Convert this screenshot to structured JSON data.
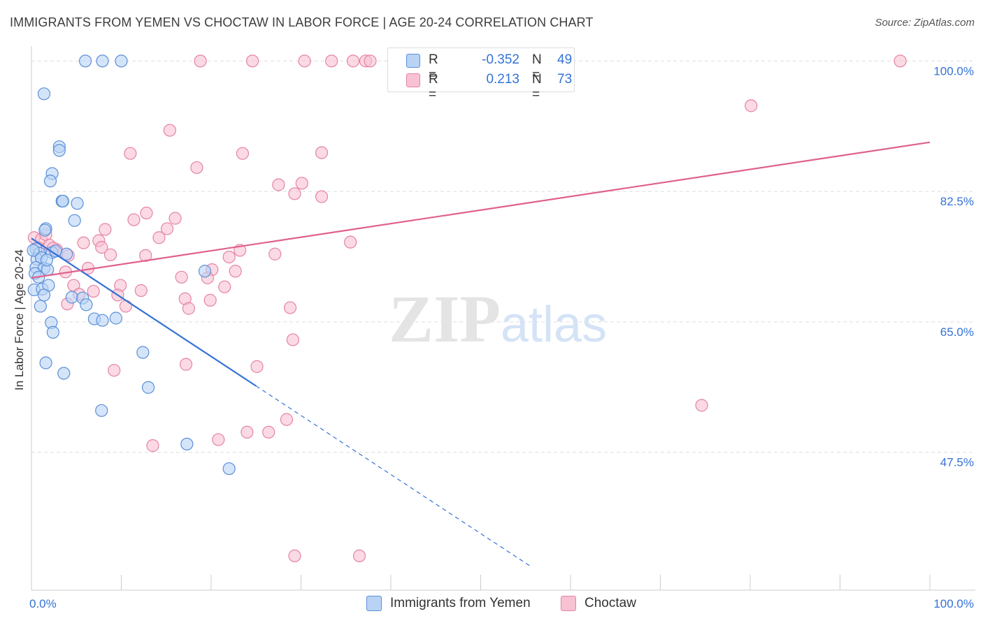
{
  "header": {
    "title": "IMMIGRANTS FROM YEMEN VS CHOCTAW IN LABOR FORCE | AGE 20-24 CORRELATION CHART",
    "source": "Source: ZipAtlas.com"
  },
  "watermark": {
    "zip": "ZIP",
    "atlas": "atlas"
  },
  "colors": {
    "blue_fill": "#b9d3f5",
    "blue_stroke": "#5b8fd9",
    "blue_line": "#3472d6",
    "pink_fill": "#f8c2d2",
    "pink_stroke": "#e583a5",
    "pink_line": "#e0608e",
    "axis_text": "#3472d6",
    "grid": "#dddddd"
  },
  "legend": {
    "rows": [
      {
        "r_label": "R =",
        "r_value": "-0.352",
        "n_label": "N =",
        "n_value": "49"
      },
      {
        "r_label": "R =",
        "r_value": "0.213",
        "n_label": "N =",
        "n_value": "73"
      }
    ]
  },
  "chart_data": {
    "type": "scatter",
    "title": "IMMIGRANTS FROM YEMEN VS CHOCTAW IN LABOR FORCE | AGE 20-24 CORRELATION CHART",
    "xlabel": "",
    "ylabel": "In Labor Force | Age 20-24",
    "xlim": [
      0,
      100
    ],
    "ylim": [
      29,
      102
    ],
    "x_tick_labels": [
      "0.0%",
      "100.0%"
    ],
    "y_ticks": [
      47.5,
      65.0,
      82.5,
      100.0
    ],
    "y_tick_labels": [
      "47.5%",
      "65.0%",
      "82.5%",
      "100.0%"
    ],
    "grid": true,
    "series": [
      {
        "name": "Immigrants from Yemen",
        "r": -0.352,
        "n": 49,
        "trend": {
          "x0": 0,
          "y0": 76.2,
          "x1": 25,
          "y1": 56.4,
          "dash_to_x": 55.5
        },
        "points": [
          [
            6.0,
            100.0
          ],
          [
            7.9,
            100.0
          ],
          [
            10.0,
            100.0
          ],
          [
            1.4,
            95.6
          ],
          [
            3.1,
            88.5
          ],
          [
            3.1,
            88.0
          ],
          [
            2.3,
            84.9
          ],
          [
            2.1,
            83.9
          ],
          [
            3.4,
            81.2
          ],
          [
            3.5,
            81.2
          ],
          [
            5.1,
            80.9
          ],
          [
            4.8,
            78.6
          ],
          [
            1.6,
            77.5
          ],
          [
            1.5,
            77.3
          ],
          [
            0.5,
            74.8
          ],
          [
            0.9,
            74.2
          ],
          [
            2.3,
            74.3
          ],
          [
            3.9,
            74.1
          ],
          [
            0.6,
            73.4
          ],
          [
            1.1,
            73.6
          ],
          [
            0.5,
            72.3
          ],
          [
            1.4,
            72.2
          ],
          [
            1.8,
            72.0
          ],
          [
            0.4,
            71.5
          ],
          [
            0.8,
            71.0
          ],
          [
            19.3,
            71.8
          ],
          [
            0.3,
            69.3
          ],
          [
            1.2,
            69.4
          ],
          [
            1.9,
            69.9
          ],
          [
            4.5,
            68.3
          ],
          [
            5.7,
            68.2
          ],
          [
            6.1,
            67.3
          ],
          [
            1.0,
            67.1
          ],
          [
            7.0,
            65.4
          ],
          [
            7.9,
            65.2
          ],
          [
            9.4,
            65.5
          ],
          [
            2.2,
            64.9
          ],
          [
            2.4,
            63.6
          ],
          [
            12.4,
            60.9
          ],
          [
            1.6,
            59.5
          ],
          [
            3.6,
            58.1
          ],
          [
            13.0,
            56.2
          ],
          [
            7.8,
            53.1
          ],
          [
            17.3,
            48.6
          ],
          [
            22.0,
            45.3
          ],
          [
            0.2,
            74.6
          ],
          [
            2.7,
            74.5
          ],
          [
            1.7,
            73.3
          ],
          [
            1.4,
            68.6
          ]
        ]
      },
      {
        "name": "Choctaw",
        "r": 0.213,
        "n": 73,
        "trend": {
          "x0": 0,
          "y0": 70.9,
          "x1": 100,
          "y1": 89.1
        },
        "points": [
          [
            18.8,
            100.0
          ],
          [
            24.6,
            100.0
          ],
          [
            30.4,
            100.0
          ],
          [
            33.4,
            100.0
          ],
          [
            35.8,
            100.0
          ],
          [
            37.2,
            100.0
          ],
          [
            37.7,
            100.0
          ],
          [
            43.4,
            100.0
          ],
          [
            96.7,
            100.0
          ],
          [
            80.1,
            94.0
          ],
          [
            15.4,
            90.7
          ],
          [
            11.0,
            87.6
          ],
          [
            23.5,
            87.6
          ],
          [
            32.3,
            87.7
          ],
          [
            18.4,
            85.7
          ],
          [
            27.5,
            83.4
          ],
          [
            30.1,
            83.6
          ],
          [
            29.3,
            82.2
          ],
          [
            32.3,
            81.8
          ],
          [
            12.8,
            79.6
          ],
          [
            11.4,
            78.7
          ],
          [
            16.0,
            78.9
          ],
          [
            8.2,
            77.4
          ],
          [
            15.1,
            77.5
          ],
          [
            14.2,
            76.3
          ],
          [
            0.3,
            76.3
          ],
          [
            1.1,
            76.1
          ],
          [
            1.6,
            76.7
          ],
          [
            5.8,
            75.6
          ],
          [
            7.5,
            75.9
          ],
          [
            35.5,
            75.7
          ],
          [
            2.0,
            75.3
          ],
          [
            7.8,
            75.0
          ],
          [
            23.2,
            74.6
          ],
          [
            0.8,
            74.9
          ],
          [
            2.8,
            74.7
          ],
          [
            8.8,
            74.0
          ],
          [
            12.7,
            73.9
          ],
          [
            22.0,
            73.7
          ],
          [
            27.1,
            74.1
          ],
          [
            4.1,
            73.9
          ],
          [
            6.3,
            72.2
          ],
          [
            20.1,
            72.0
          ],
          [
            22.7,
            71.8
          ],
          [
            3.8,
            71.7
          ],
          [
            16.7,
            71.0
          ],
          [
            19.6,
            70.9
          ],
          [
            4.7,
            69.9
          ],
          [
            9.9,
            69.9
          ],
          [
            21.5,
            69.7
          ],
          [
            6.9,
            69.1
          ],
          [
            12.2,
            69.2
          ],
          [
            5.3,
            68.7
          ],
          [
            9.6,
            68.6
          ],
          [
            17.1,
            68.1
          ],
          [
            19.9,
            67.9
          ],
          [
            4.0,
            67.4
          ],
          [
            10.5,
            67.1
          ],
          [
            17.5,
            66.8
          ],
          [
            28.8,
            66.9
          ],
          [
            29.1,
            62.6
          ],
          [
            17.2,
            59.3
          ],
          [
            25.1,
            59.0
          ],
          [
            9.2,
            58.5
          ],
          [
            74.6,
            53.8
          ],
          [
            28.4,
            51.9
          ],
          [
            20.8,
            49.2
          ],
          [
            24.0,
            50.2
          ],
          [
            26.4,
            50.2
          ],
          [
            13.5,
            48.4
          ],
          [
            29.3,
            33.6
          ],
          [
            36.5,
            33.6
          ],
          [
            2.4,
            74.9
          ]
        ]
      }
    ]
  }
}
